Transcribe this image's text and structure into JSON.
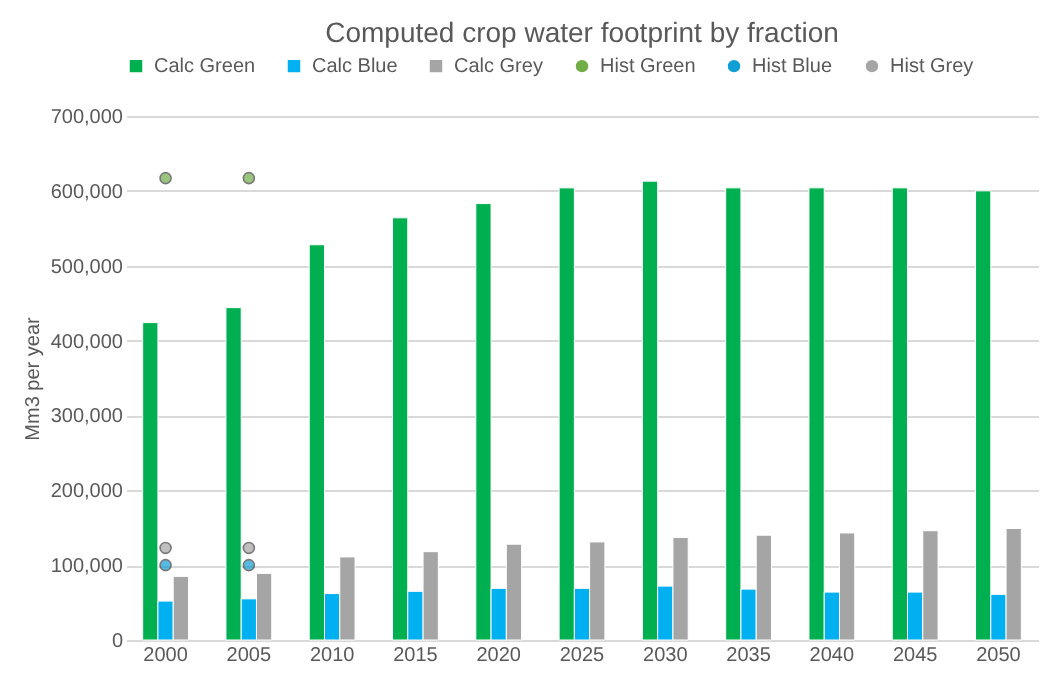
{
  "chart_data": {
    "type": "bar",
    "title": "Computed crop water footprint by fraction",
    "ylabel": "Mm3 per year",
    "categories": [
      "2000",
      "2005",
      "2010",
      "2015",
      "2020",
      "2025",
      "2030",
      "2035",
      "2040",
      "2045",
      "2050"
    ],
    "series": [
      {
        "name": "Calc Green",
        "color": "#00b050",
        "values": [
          424000,
          444000,
          528000,
          564000,
          583000,
          604000,
          613000,
          604000,
          604000,
          604000,
          600000
        ]
      },
      {
        "name": "Calc Blue",
        "color": "#00b0f0",
        "values": [
          52000,
          55000,
          62000,
          65000,
          69000,
          69000,
          72000,
          68000,
          64000,
          64000,
          61000
        ]
      },
      {
        "name": "Calc Grey",
        "color": "#a5a5a5",
        "values": [
          85000,
          89000,
          111000,
          118000,
          128000,
          131000,
          137000,
          140000,
          143000,
          146000,
          149000
        ]
      },
      {
        "name": "Hist Green",
        "type": "scatter",
        "color": "#70ad47",
        "values": [
          617000,
          617000,
          null,
          null,
          null,
          null,
          null,
          null,
          null,
          null,
          null
        ]
      },
      {
        "name": "Hist Blue",
        "type": "scatter",
        "color": "#0f9ed5",
        "values": [
          100000,
          100000,
          null,
          null,
          null,
          null,
          null,
          null,
          null,
          null,
          null
        ]
      },
      {
        "name": "Hist Grey",
        "type": "scatter",
        "color": "#a5a5a5",
        "values": [
          123000,
          123000,
          null,
          null,
          null,
          null,
          null,
          null,
          null,
          null,
          null
        ]
      }
    ],
    "ylim": [
      0,
      700000
    ],
    "yticks": [
      0,
      {
        "value": 100000,
        "label": "100,000"
      },
      {
        "value": 200000,
        "label": "200,000"
      },
      {
        "value": 300000,
        "label": "300,000"
      },
      {
        "value": 400000,
        "label": "400,000"
      },
      {
        "value": 500000,
        "label": "500,000"
      },
      {
        "value": 600000,
        "label": "600,000"
      },
      {
        "value": 700000,
        "label": "700,000"
      }
    ],
    "grid": "y",
    "legend": "top",
    "marker": "circle"
  }
}
